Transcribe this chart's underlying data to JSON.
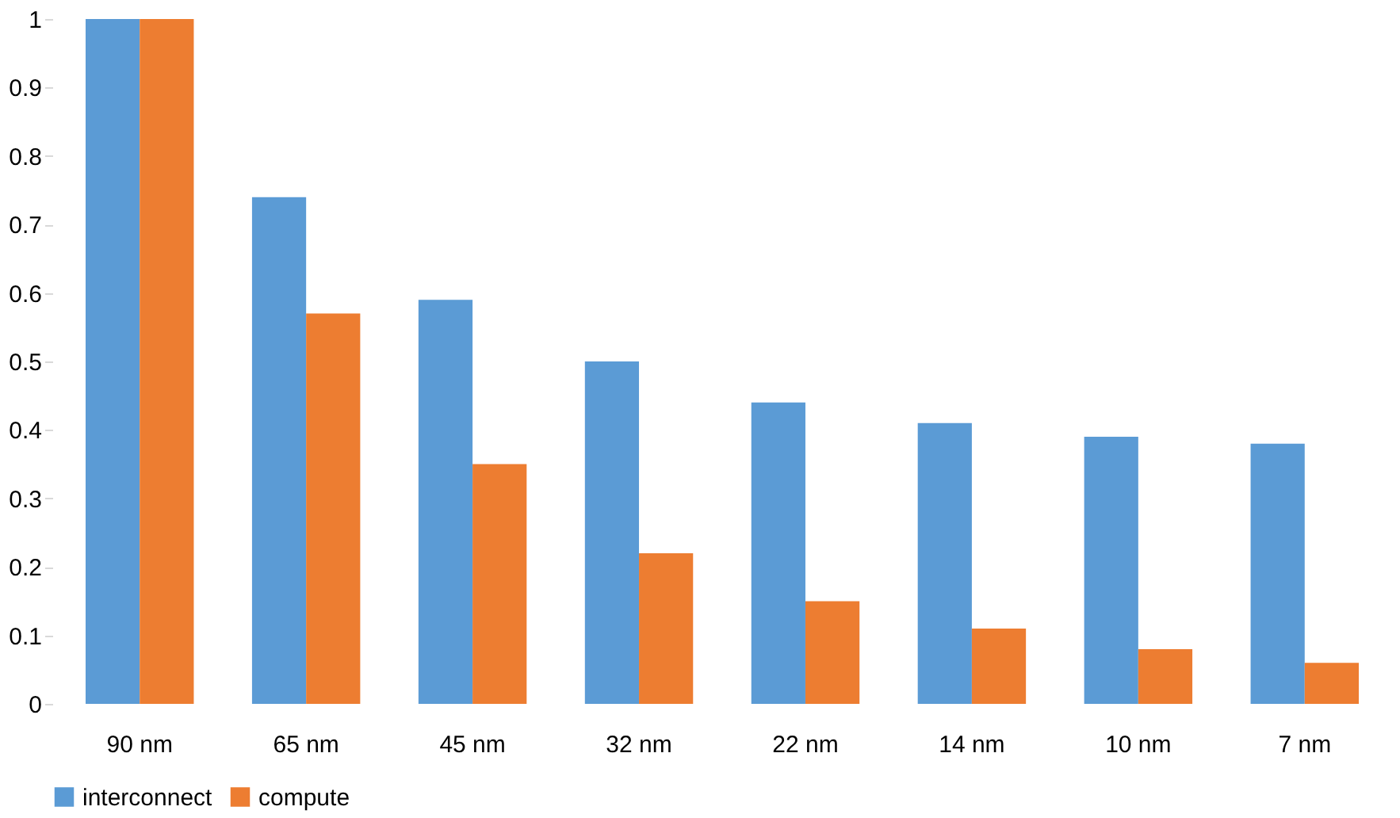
{
  "chart_data": {
    "type": "bar",
    "categories": [
      "90 nm",
      "65 nm",
      "45 nm",
      "32 nm",
      "22 nm",
      "14 nm",
      "10 nm",
      "7 nm"
    ],
    "series": [
      {
        "name": "interconnect",
        "color": "#5b9bd5",
        "values": [
          1,
          0.74,
          0.59,
          0.5,
          0.44,
          0.41,
          0.39,
          0.38
        ]
      },
      {
        "name": "compute",
        "color": "#ed7d31",
        "values": [
          1,
          0.57,
          0.35,
          0.22,
          0.15,
          0.11,
          0.08,
          0.06
        ]
      }
    ],
    "ylim": [
      0,
      1
    ],
    "yticks": [
      0,
      0.1,
      0.2,
      0.3,
      0.4,
      0.5,
      0.6,
      0.7,
      0.8,
      0.9,
      1
    ],
    "grid": false,
    "legend": "bottom"
  }
}
